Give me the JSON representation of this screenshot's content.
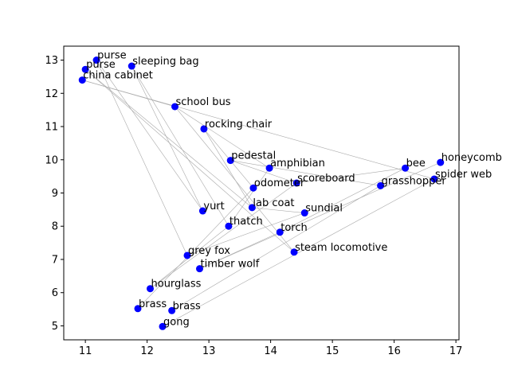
{
  "chart_data": {
    "type": "scatter",
    "title": "",
    "xlabel": "",
    "ylabel": "",
    "xlim": [
      10.65,
      17.05
    ],
    "ylim": [
      4.58,
      13.42
    ],
    "xticks": [
      11,
      12,
      13,
      14,
      15,
      16,
      17
    ],
    "yticks": [
      5,
      6,
      7,
      8,
      9,
      10,
      11,
      12,
      13
    ],
    "grid": false,
    "point_color": "#0000ff",
    "edge_color": "#aaaaaa",
    "points": [
      {
        "label": "purse",
        "x": 11.18,
        "y": 13.0
      },
      {
        "label": "sleeping bag",
        "x": 11.75,
        "y": 12.82
      },
      {
        "label": "purse",
        "x": 11.0,
        "y": 12.72
      },
      {
        "label": "china cabinet",
        "x": 10.95,
        "y": 12.4
      },
      {
        "label": "school bus",
        "x": 12.45,
        "y": 11.6
      },
      {
        "label": "rocking chair",
        "x": 12.92,
        "y": 10.93
      },
      {
        "label": "honeycomb",
        "x": 16.75,
        "y": 9.92
      },
      {
        "label": "pedestal",
        "x": 13.35,
        "y": 9.98
      },
      {
        "label": "bee",
        "x": 16.18,
        "y": 9.75
      },
      {
        "label": "amphibian",
        "x": 13.98,
        "y": 9.75
      },
      {
        "label": "spider web",
        "x": 16.65,
        "y": 9.42
      },
      {
        "label": "scoreboard",
        "x": 14.42,
        "y": 9.3
      },
      {
        "label": "grasshopper",
        "x": 15.78,
        "y": 9.22
      },
      {
        "label": "odometer",
        "x": 13.72,
        "y": 9.15
      },
      {
        "label": "lab coat",
        "x": 13.7,
        "y": 8.56
      },
      {
        "label": "yurt",
        "x": 12.9,
        "y": 8.46
      },
      {
        "label": "sundial",
        "x": 14.55,
        "y": 8.4
      },
      {
        "label": "thatch",
        "x": 13.32,
        "y": 8.0
      },
      {
        "label": "torch",
        "x": 14.15,
        "y": 7.82
      },
      {
        "label": "steam locomotive",
        "x": 14.38,
        "y": 7.22
      },
      {
        "label": "grey fox",
        "x": 12.65,
        "y": 7.12
      },
      {
        "label": "timber wolf",
        "x": 12.85,
        "y": 6.72
      },
      {
        "label": "hourglass",
        "x": 12.05,
        "y": 6.12
      },
      {
        "label": "brass",
        "x": 11.85,
        "y": 5.52
      },
      {
        "label": "brass",
        "x": 12.4,
        "y": 5.46
      },
      {
        "label": "gong",
        "x": 12.25,
        "y": 4.98
      }
    ],
    "edges": [
      [
        0,
        20
      ],
      [
        0,
        15
      ],
      [
        1,
        15
      ],
      [
        2,
        14
      ],
      [
        3,
        10
      ],
      [
        3,
        4
      ],
      [
        4,
        9
      ],
      [
        4,
        19
      ],
      [
        5,
        13
      ],
      [
        5,
        14
      ],
      [
        6,
        21
      ],
      [
        7,
        12
      ],
      [
        7,
        11
      ],
      [
        8,
        11
      ],
      [
        8,
        18
      ],
      [
        9,
        17
      ],
      [
        10,
        25
      ],
      [
        11,
        22
      ],
      [
        12,
        24
      ],
      [
        13,
        23
      ],
      [
        14,
        16
      ],
      [
        16,
        20
      ],
      [
        17,
        22
      ],
      [
        18,
        21
      ],
      [
        1,
        17
      ],
      [
        2,
        19
      ]
    ]
  }
}
